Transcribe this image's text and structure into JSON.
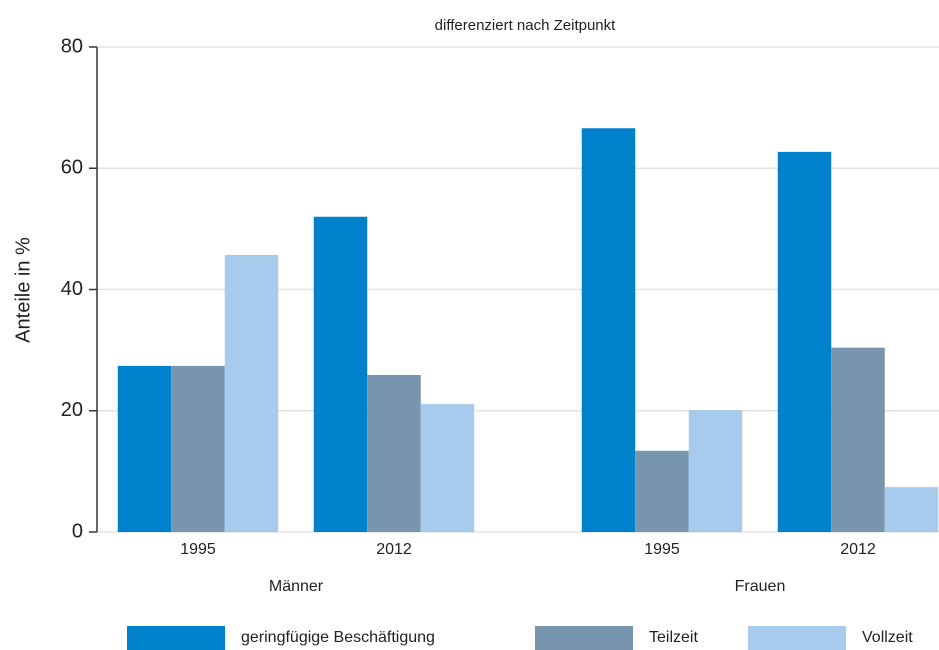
{
  "chart_data": {
    "type": "bar",
    "title": "differenziert nach Zeitpunkt",
    "y_label": "Anteile in %",
    "categories": [
      "1995",
      "2012",
      "1995",
      "2012"
    ],
    "groups": [
      "Männer",
      "Frauen"
    ],
    "series": [
      {
        "name": "geringfügige Beschäftigung",
        "color": "#0081cc",
        "values": [
          27.4,
          52,
          66.6,
          62.7
        ]
      },
      {
        "name": "Teilzeit",
        "color": "#7795ae",
        "values": [
          27.4,
          25.9,
          13.4,
          30.4
        ]
      },
      {
        "name": "Vollzeit",
        "color": "#a6cbec",
        "values": [
          45.7,
          21.1,
          20.1,
          7.4
        ]
      }
    ],
    "ylim": [
      0,
      80
    ],
    "yticks": [
      0,
      20,
      40,
      60,
      80
    ],
    "grid": true
  }
}
